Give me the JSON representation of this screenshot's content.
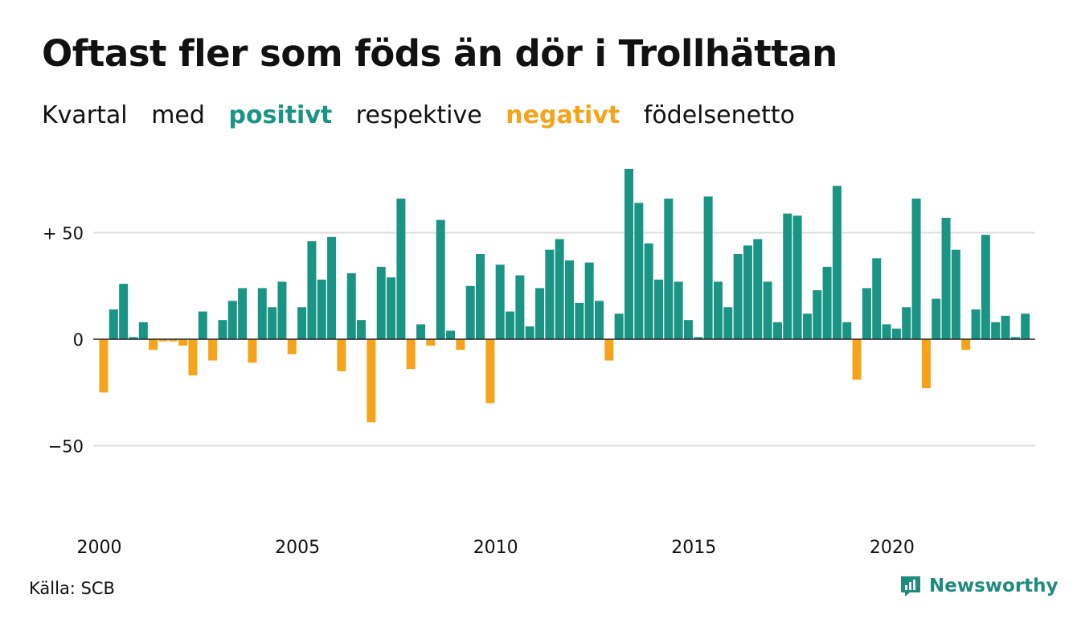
{
  "title": "Oftast fler som föds än dör i Trollhättan",
  "subtitle": {
    "w1": "Kvartal",
    "w2": "med",
    "positive": "positivt",
    "w3": "respektive",
    "negative": "negativt",
    "w4": "födelsenetto"
  },
  "source": "Källa: SCB",
  "brand": "Newsworthy",
  "colors": {
    "positive": "#1a9485",
    "negative": "#f5a31a",
    "grid": "#dddddd",
    "brand": "#1f8a7e"
  },
  "icons": [
    "newsworthy-logo-icon"
  ],
  "chart_data": {
    "type": "bar",
    "ylim": [
      -80,
      80
    ],
    "yticks": [
      {
        "value": 50,
        "label": "+ 50"
      },
      {
        "value": 0,
        "label": "0"
      },
      {
        "value": -50,
        "label": "−50"
      }
    ],
    "xticks": [
      "2000",
      "2005",
      "2010",
      "2015",
      "2020"
    ],
    "grid": true,
    "first_period": "2000 Q1",
    "values": [
      -25,
      14,
      26,
      1,
      8,
      -5,
      -1,
      -1,
      -3,
      -17,
      13,
      -10,
      9,
      18,
      24,
      -11,
      24,
      15,
      27,
      -7,
      15,
      46,
      28,
      48,
      -15,
      31,
      9,
      -39,
      34,
      29,
      66,
      -14,
      7,
      -3,
      56,
      4,
      -5,
      25,
      40,
      -30,
      35,
      13,
      30,
      6,
      24,
      42,
      47,
      37,
      17,
      36,
      18,
      -10,
      12,
      80,
      64,
      45,
      28,
      66,
      27,
      9,
      1,
      67,
      27,
      15,
      40,
      44,
      47,
      27,
      8,
      59,
      58,
      12,
      23,
      34,
      72,
      8,
      -19,
      24,
      38,
      7,
      5,
      15,
      66,
      -23,
      19,
      57,
      42,
      -5,
      14,
      49,
      8,
      11,
      1,
      12
    ]
  }
}
